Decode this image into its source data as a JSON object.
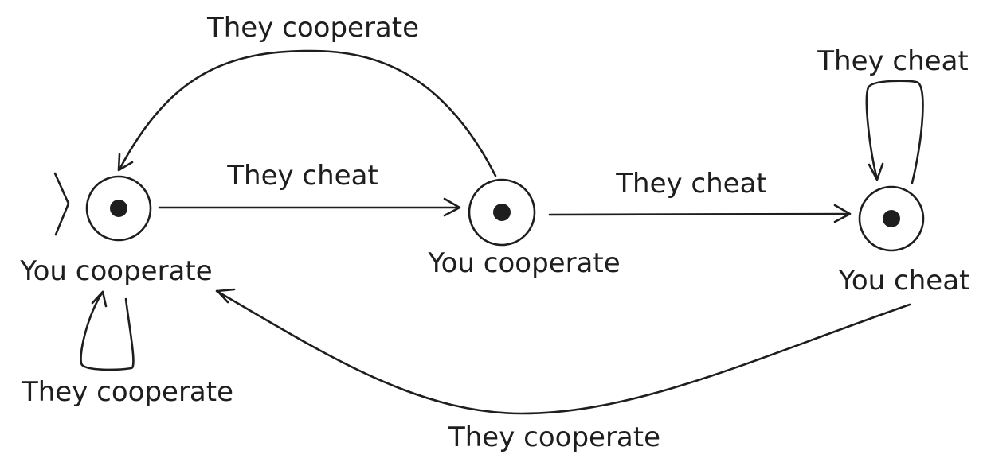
{
  "states": [
    {
      "id": "s1",
      "label": "You cooperate",
      "initial": true
    },
    {
      "id": "s2",
      "label": "You cooperate",
      "initial": false
    },
    {
      "id": "s3",
      "label": "You cheat",
      "initial": false
    }
  ],
  "transitions": [
    {
      "from": "s1",
      "to": "s2",
      "label": "They cheat"
    },
    {
      "from": "s2",
      "to": "s1",
      "label": "They cooperate"
    },
    {
      "from": "s2",
      "to": "s3",
      "label": "They cheat"
    },
    {
      "from": "s3",
      "to": "s3",
      "label": "They cheat"
    },
    {
      "from": "s3",
      "to": "s1",
      "label": "They cooperate"
    },
    {
      "from": "s1",
      "to": "s1",
      "label": "They cooperate"
    }
  ]
}
